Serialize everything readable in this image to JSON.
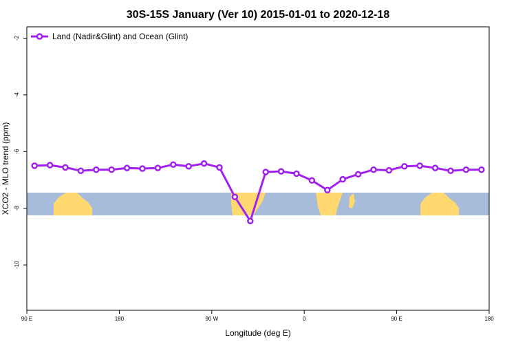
{
  "chart_data": {
    "type": "line",
    "title": "30S-15S January (Ver 10)   2015-01-01 to 2020-12-18",
    "xlabel": "Longitude (deg E)",
    "ylabel": "XCO2 - MLO trend (ppm)",
    "x_ticks": [
      {
        "pos": 90,
        "label": "90 E"
      },
      {
        "pos": 180,
        "label": "180"
      },
      {
        "pos": 270,
        "label": "90 W"
      },
      {
        "pos": 360,
        "label": "0"
      },
      {
        "pos": 450,
        "label": "90 E"
      },
      {
        "pos": 540,
        "label": "180"
      }
    ],
    "y_ticks": [
      {
        "pos": -2,
        "label": "-2"
      },
      {
        "pos": -4,
        "label": "-4"
      },
      {
        "pos": -6,
        "label": "-6"
      },
      {
        "pos": -8,
        "label": "-8"
      },
      {
        "pos": -10,
        "label": "-10"
      }
    ],
    "xlim": [
      90,
      540
    ],
    "ylim": [
      -11.6,
      -1.6
    ],
    "legend_position": "top-left",
    "grid": false,
    "series": [
      {
        "name": "Land (Nadir&Glint) and Ocean (Glint)",
        "color": "#a020f0",
        "x": [
          97.5,
          112.5,
          127.5,
          142.5,
          157.5,
          172.5,
          187.5,
          202.5,
          217.5,
          232.5,
          247.5,
          262.5,
          277.5,
          292.5,
          307.5,
          322.5,
          337.5,
          352.5,
          367.5,
          382.5,
          397.5,
          412.5,
          427.5,
          442.5,
          457.5,
          472.5,
          487.5,
          502.5,
          517.5,
          532.5
        ],
        "y": [
          -6.5,
          -6.48,
          -6.56,
          -6.68,
          -6.64,
          -6.64,
          -6.58,
          -6.6,
          -6.58,
          -6.46,
          -6.52,
          -6.42,
          -6.56,
          -7.6,
          -8.45,
          -6.72,
          -6.7,
          -6.78,
          -7.02,
          -7.36,
          -6.98,
          -6.8,
          -6.64,
          -6.66,
          -6.52,
          -6.5,
          -6.58,
          -6.68,
          -6.64,
          -6.64
        ]
      }
    ]
  }
}
